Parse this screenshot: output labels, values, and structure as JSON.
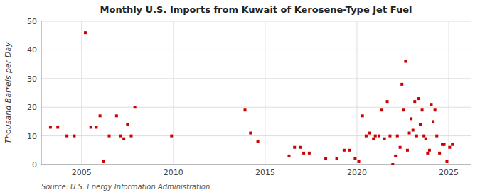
{
  "chart_data": {
    "type": "scatter",
    "title": "Monthly U.S. Imports from Kuwait of Kerosene-Type Jet Fuel",
    "y_label": "Thousand Barrels per Day",
    "annotations": [
      "Source: U.S. Energy Information Administration"
    ],
    "color": "#cc0000",
    "marker": "square",
    "grid": true,
    "xlim": [
      2002.8,
      2026.2
    ],
    "ylim": [
      0,
      50
    ],
    "xticks": [
      2005,
      2010,
      2015,
      2020,
      2025
    ],
    "yticks": [
      0,
      10,
      20,
      30,
      40,
      50
    ],
    "x": [
      2003.3,
      2003.7,
      2004.2,
      2004.6,
      2005.2,
      2005.5,
      2005.8,
      2006.0,
      2006.2,
      2006.5,
      2006.9,
      2007.1,
      2007.3,
      2007.5,
      2007.7,
      2007.9,
      2009.9,
      2013.9,
      2014.2,
      2014.6,
      2016.3,
      2016.6,
      2016.9,
      2017.1,
      2017.4,
      2018.3,
      2018.9,
      2019.3,
      2019.6,
      2019.9,
      2020.1,
      2020.3,
      2020.5,
      2020.7,
      2020.9,
      2021.0,
      2021.2,
      2021.35,
      2021.5,
      2021.65,
      2021.8,
      2021.95,
      2022.1,
      2022.2,
      2022.35,
      2022.45,
      2022.55,
      2022.65,
      2022.75,
      2022.85,
      2022.95,
      2023.05,
      2023.15,
      2023.25,
      2023.35,
      2023.45,
      2023.55,
      2023.65,
      2023.75,
      2023.85,
      2023.95,
      2024.05,
      2024.15,
      2024.25,
      2024.35,
      2024.5,
      2024.65,
      2024.75,
      2024.9,
      2025.05,
      2025.2
    ],
    "values": [
      13,
      13,
      10,
      10,
      46,
      13,
      13,
      17,
      1,
      10,
      17,
      10,
      9,
      14,
      10,
      20,
      10,
      19,
      11,
      8,
      3,
      6,
      6,
      4,
      4,
      2,
      2,
      5,
      5,
      2,
      1,
      17,
      10,
      11,
      9,
      10,
      10,
      19,
      9,
      22,
      10,
      0,
      3,
      10,
      6,
      28,
      19,
      36,
      5,
      11,
      16,
      12,
      22,
      10,
      23,
      14,
      19,
      10,
      9,
      4,
      5,
      21,
      15,
      19,
      10,
      4,
      7,
      7,
      1,
      6,
      7
    ]
  }
}
